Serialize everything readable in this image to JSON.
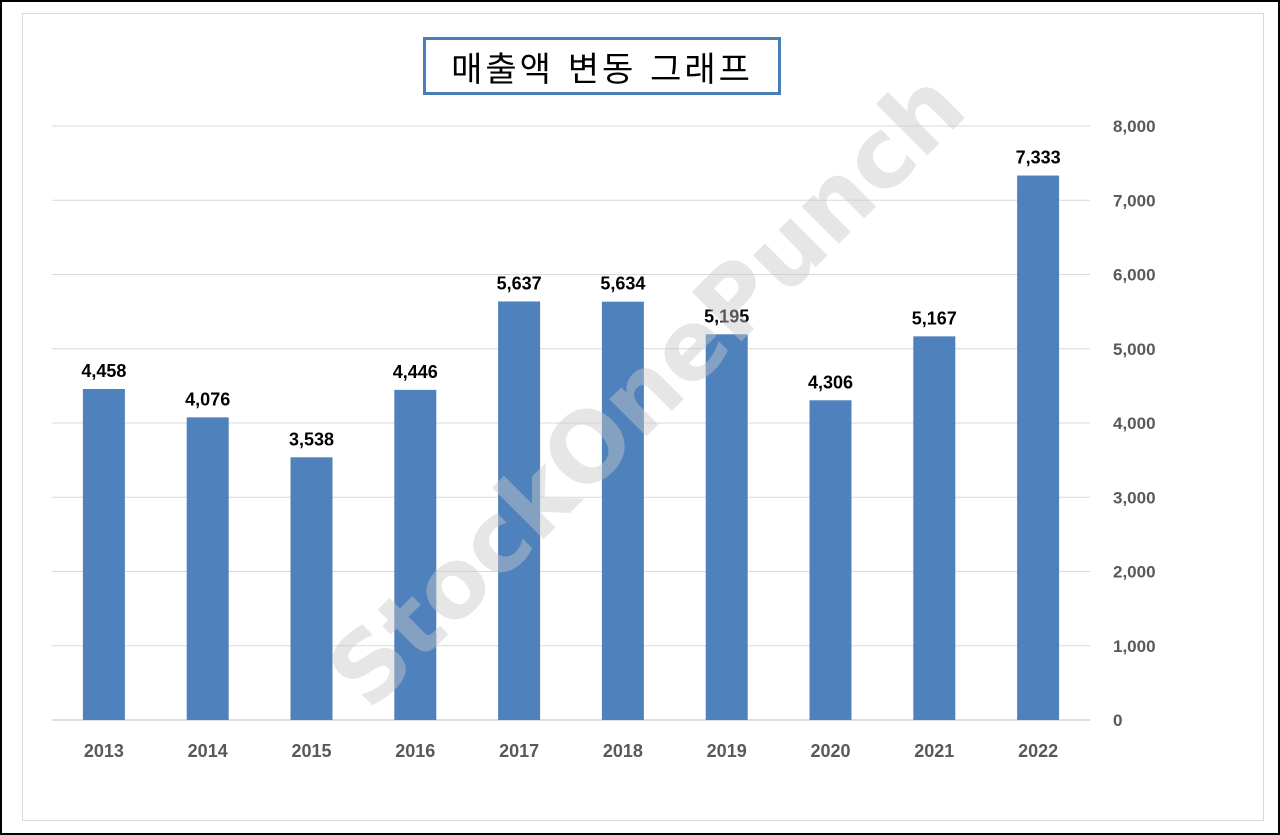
{
  "chart_data": {
    "type": "bar",
    "title": "매출액 변동 그래프",
    "categories": [
      "2013",
      "2014",
      "2015",
      "2016",
      "2017",
      "2018",
      "2019",
      "2020",
      "2021",
      "2022"
    ],
    "values": [
      4458,
      4076,
      3538,
      4446,
      5637,
      5634,
      5195,
      4306,
      5167,
      7333
    ],
    "data_labels": [
      "4,458",
      "4,076",
      "3,538",
      "4,446",
      "5,637",
      "5,634",
      "5,195",
      "4,306",
      "5,167",
      "7,333"
    ],
    "y_ticks": [
      "0",
      "1,000",
      "2,000",
      "3,000",
      "4,000",
      "5,000",
      "6,000",
      "7,000",
      "8,000"
    ],
    "ylim": [
      0,
      8000
    ],
    "y_axis_side": "right",
    "grid": true,
    "bar_color": "#4f81bd",
    "watermark": "StockOnePunch"
  }
}
